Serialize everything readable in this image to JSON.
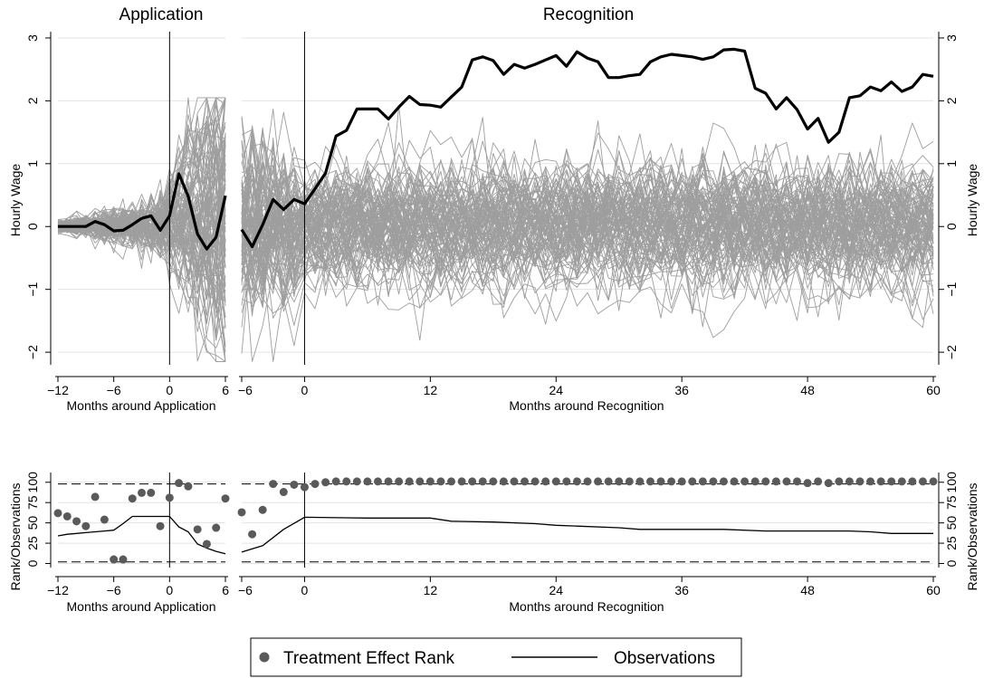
{
  "chart_data": [
    {
      "type": "line",
      "panel": "application-top",
      "title": "Application",
      "xlabel": "Months around Application",
      "ylabel": "Hourly Wage",
      "xlim": [
        -12,
        6
      ],
      "ylim": [
        -2.2,
        3.1
      ],
      "x_ticks": [
        -12,
        -6,
        0,
        6
      ],
      "x_tick_labels": [
        "−12",
        "−6",
        "0",
        "6"
      ],
      "y_ticks": [
        -2,
        -1,
        0,
        1,
        2,
        3
      ],
      "y_tick_labels": [
        "−2",
        "−1",
        "0",
        "1",
        "2",
        "3"
      ],
      "vline_x": 0,
      "grid": true,
      "estimate": {
        "x": [
          -12,
          -11,
          -10,
          -9,
          -8,
          -7,
          -6,
          -5,
          -4,
          -3,
          -2,
          -1,
          0,
          1,
          2,
          3,
          4,
          5,
          6
        ],
        "values": [
          0,
          0,
          0,
          0,
          0.08,
          0.03,
          -0.07,
          -0.06,
          0.03,
          0.13,
          0.17,
          -0.06,
          0.17,
          0.84,
          0.48,
          -0.12,
          -0.36,
          -0.17,
          0.49
        ]
      },
      "placebo_count": 100,
      "placebo_color": "#9e9e9e",
      "estimate_color": "#000000"
    },
    {
      "type": "line",
      "panel": "recognition-top",
      "title": "Recognition",
      "xlabel": "Months around Recognition",
      "ylabel": "Hourly Wage",
      "xlim": [
        -6,
        60
      ],
      "ylim": [
        -2.2,
        3.1
      ],
      "x_ticks": [
        -6,
        0,
        12,
        24,
        36,
        48,
        60
      ],
      "x_tick_labels": [
        "−6",
        "0",
        "12",
        "24",
        "36",
        "48",
        "60"
      ],
      "y_ticks": [
        -2,
        -1,
        0,
        1,
        2,
        3
      ],
      "y_tick_labels": [
        "−2",
        "−1",
        "0",
        "1",
        "2",
        "3"
      ],
      "vline_x": 0,
      "grid": true,
      "estimate": {
        "x": [
          -6,
          -5,
          -4,
          -3,
          -2,
          -1,
          0,
          1,
          2,
          3,
          4,
          5,
          6,
          7,
          8,
          9,
          10,
          11,
          12,
          13,
          14,
          15,
          16,
          17,
          18,
          19,
          20,
          21,
          22,
          23,
          24,
          25,
          26,
          27,
          28,
          29,
          30,
          31,
          32,
          33,
          34,
          35,
          36,
          37,
          38,
          39,
          40,
          41,
          42,
          43,
          44,
          45,
          46,
          47,
          48,
          49,
          50,
          51,
          52,
          53,
          54,
          55,
          56,
          57,
          58,
          59,
          60
        ],
        "values": [
          -0.05,
          -0.32,
          0.03,
          0.43,
          0.27,
          0.43,
          0.36,
          0.6,
          0.85,
          1.44,
          1.53,
          1.87,
          1.87,
          1.87,
          1.71,
          1.9,
          2.07,
          1.94,
          1.93,
          1.9,
          2.06,
          2.22,
          2.65,
          2.7,
          2.64,
          2.42,
          2.58,
          2.52,
          2.58,
          2.65,
          2.72,
          2.55,
          2.78,
          2.68,
          2.62,
          2.37,
          2.37,
          2.4,
          2.42,
          2.62,
          2.7,
          2.74,
          2.72,
          2.7,
          2.66,
          2.7,
          2.81,
          2.82,
          2.79,
          2.2,
          2.12,
          1.87,
          2.05,
          1.86,
          1.55,
          1.72,
          1.34,
          1.5,
          2.05,
          2.08,
          2.22,
          2.16,
          2.3,
          2.15,
          2.22,
          2.42,
          2.39
        ]
      },
      "placebo_count": 100,
      "placebo_color": "#9e9e9e",
      "estimate_color": "#000000"
    },
    {
      "type": "scatter",
      "panel": "application-bottom",
      "xlabel": "Months around Application",
      "ylabel": "Rank/Observations",
      "xlim": [
        -12,
        6
      ],
      "ylim": [
        -5,
        112
      ],
      "x_ticks": [
        -12,
        -6,
        0,
        6
      ],
      "x_tick_labels": [
        "−12",
        "−6",
        "0",
        "6"
      ],
      "y_ticks": [
        0,
        25,
        50,
        75,
        100
      ],
      "y_tick_labels": [
        "0",
        "25",
        "50",
        "75",
        "100"
      ],
      "hlines_dashed": [
        2,
        98
      ],
      "vline_x": 0,
      "series": [
        {
          "name": "Treatment Effect Rank",
          "x": [
            -12,
            -11,
            -10,
            -9,
            -8,
            -7,
            -6,
            -5,
            -4,
            -3,
            -2,
            -1,
            0,
            1,
            2,
            3,
            4,
            5,
            6
          ],
          "values": [
            62,
            58,
            52,
            46,
            82,
            54,
            5,
            5,
            80,
            87,
            87,
            46,
            81,
            99,
            95,
            42,
            24,
            44,
            80
          ]
        },
        {
          "name": "Observations",
          "x": [
            -12,
            -11,
            -10,
            -9,
            -8,
            -7,
            -6,
            -5,
            -4,
            -3,
            -2,
            -1,
            0,
            1,
            2,
            3,
            4,
            5,
            6
          ],
          "values": [
            34,
            36,
            37,
            38,
            39,
            40,
            41,
            49,
            58,
            58,
            58,
            58,
            58,
            45,
            39,
            24,
            19,
            15,
            12
          ]
        }
      ]
    },
    {
      "type": "scatter",
      "panel": "recognition-bottom",
      "xlabel": "Months around Recognition",
      "ylabel": "Rank/Observations",
      "xlim": [
        -6,
        60
      ],
      "ylim": [
        -5,
        112
      ],
      "x_ticks": [
        -6,
        0,
        12,
        24,
        36,
        48,
        60
      ],
      "x_tick_labels": [
        "−6",
        "0",
        "12",
        "24",
        "36",
        "48",
        "60"
      ],
      "y_ticks": [
        0,
        25,
        50,
        75,
        100
      ],
      "y_tick_labels": [
        "0",
        "25",
        "50",
        "75",
        "100"
      ],
      "hlines_dashed": [
        2,
        98
      ],
      "vline_x": 0,
      "series": [
        {
          "name": "Treatment Effect Rank",
          "x": [
            -6,
            -5,
            -4,
            -3,
            -2,
            -1,
            0,
            1,
            2,
            3,
            4,
            5,
            6,
            7,
            8,
            9,
            10,
            11,
            12,
            13,
            14,
            15,
            16,
            17,
            18,
            19,
            20,
            21,
            22,
            23,
            24,
            25,
            26,
            27,
            28,
            29,
            30,
            31,
            32,
            33,
            34,
            35,
            36,
            37,
            38,
            39,
            40,
            41,
            42,
            43,
            44,
            45,
            46,
            47,
            48,
            49,
            50,
            51,
            52,
            53,
            54,
            55,
            56,
            57,
            58,
            59,
            60
          ],
          "values": [
            63,
            36,
            66,
            98,
            88,
            97,
            94,
            98,
            100,
            101,
            101,
            101,
            101,
            101,
            101,
            101,
            101,
            101,
            101,
            101,
            101,
            101,
            101,
            101,
            101,
            101,
            101,
            101,
            101,
            101,
            101,
            101,
            101,
            101,
            101,
            101,
            101,
            101,
            101,
            101,
            101,
            101,
            101,
            101,
            101,
            101,
            101,
            101,
            101,
            101,
            101,
            101,
            101,
            101,
            99,
            101,
            99,
            101,
            101,
            101,
            101,
            101,
            101,
            101,
            101,
            101,
            101
          ]
        },
        {
          "name": "Observations",
          "x": [
            -6,
            -4,
            -2,
            0,
            6,
            12,
            14,
            18,
            22,
            24,
            26,
            30,
            32,
            36,
            40,
            44,
            48,
            52,
            54,
            56,
            60
          ],
          "values": [
            14,
            22,
            42,
            57,
            56,
            56,
            52,
            51,
            49,
            47,
            46,
            44,
            42,
            42,
            42,
            40,
            40,
            40,
            39,
            37,
            37
          ]
        }
      ]
    }
  ],
  "legend": {
    "items": [
      {
        "name": "Treatment Effect Rank",
        "marker": "dot"
      },
      {
        "name": "Observations",
        "marker": "line"
      }
    ],
    "placement": "bottom-center"
  }
}
